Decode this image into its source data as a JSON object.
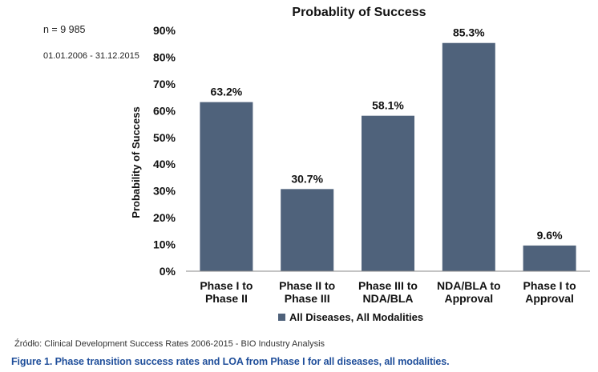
{
  "notes": {
    "sample_size": "n = 9 985",
    "period": "01.01.2006 - 31.12.2015"
  },
  "source": "Źródło: Clinical Development Success Rates 2006-2015 - BIO Industry Analysis",
  "caption": "Figure 1. Phase transition success rates and LOA from Phase I for all diseases, all modalities.",
  "chart_data": {
    "type": "bar",
    "title": "Probablity of Success",
    "ylabel": "Probability of Success",
    "xlabel": "",
    "categories": [
      [
        "Phase I to",
        "Phase II"
      ],
      [
        "Phase II to",
        "Phase III"
      ],
      [
        "Phase III to",
        "NDA/BLA"
      ],
      [
        "NDA/BLA to",
        "Approval"
      ],
      [
        "Phase I to",
        "Approval"
      ]
    ],
    "series": [
      {
        "name": "All Diseases, All Modalities",
        "values": [
          63.2,
          30.7,
          58.1,
          85.3,
          9.6
        ],
        "value_labels": [
          "63.2%",
          "30.7%",
          "58.1%",
          "85.3%",
          "9.6%"
        ],
        "color": "#4f627b"
      }
    ],
    "ylim": [
      0,
      90
    ],
    "yticks": [
      "0%",
      "10%",
      "20%",
      "30%",
      "40%",
      "50%",
      "60%",
      "70%",
      "80%",
      "90%"
    ],
    "grid": false,
    "legend_position": "bottom"
  }
}
